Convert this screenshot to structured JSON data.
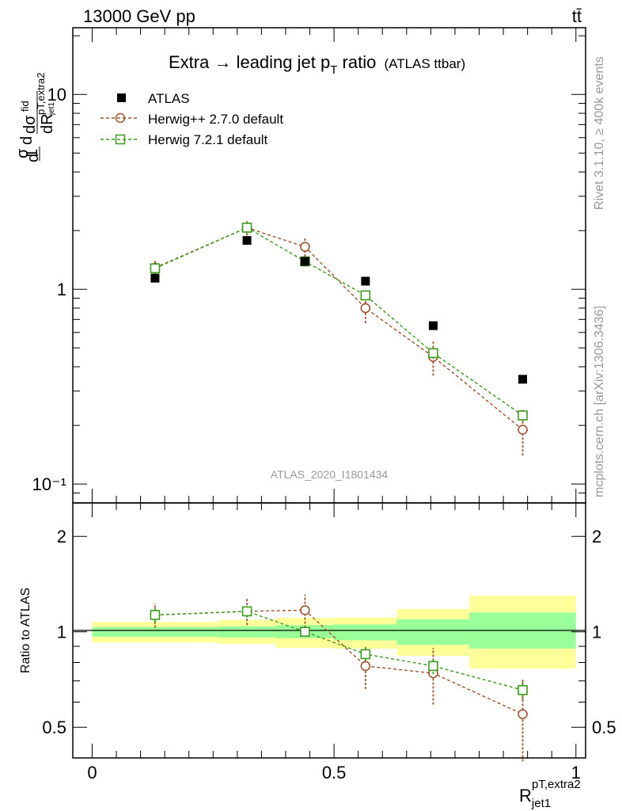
{
  "header": {
    "energy_label": "13000 GeV pp",
    "process_label": "tt̄"
  },
  "side_labels": {
    "rivet": "Rivet 3.1.10, ≥ 400k events",
    "mcplots": "mcplots.cern.ch [arXiv:1306.3436]"
  },
  "colors": {
    "atlas": "#000000",
    "herwig_pp": "#a0522d",
    "herwig7": "#3a9a1a",
    "band_inner": "#99ff99",
    "band_outer": "#ffff99",
    "watermark": "#999999"
  },
  "chart_data": [
    {
      "type": "scatter",
      "title_main": "Extra → leading jet p",
      "title_sub": "T",
      "title_tail": " ratio",
      "title_paren": "(ATLAS ttbar)",
      "ylabel": "dσ/dR / σ (fid)",
      "yscale": "log",
      "ylim": [
        0.08,
        22
      ],
      "xlim": [
        -0.04,
        1.02
      ],
      "yticks": [
        {
          "value": 0.1,
          "label": "10⁻¹"
        },
        {
          "value": 1,
          "label": "1"
        },
        {
          "value": 10,
          "label": "10"
        }
      ],
      "watermark": "ATLAS_2020_I1801434",
      "legend": [
        {
          "key": "atlas",
          "label": "ATLAS"
        },
        {
          "key": "herwig_pp",
          "label": "Herwig++ 2.7.0 default"
        },
        {
          "key": "herwig7",
          "label": "Herwig 7.2.1 default"
        }
      ],
      "atlas": {
        "x": [
          0.13,
          0.32,
          0.44,
          0.565,
          0.705,
          0.89
        ],
        "y": [
          1.14,
          1.78,
          1.39,
          1.1,
          0.65,
          0.345
        ]
      },
      "herwig_pp": {
        "x": [
          0.13,
          0.32,
          0.44,
          0.565,
          0.705,
          0.89
        ],
        "y": [
          1.29,
          2.07,
          1.65,
          0.8,
          0.45,
          0.19
        ],
        "err": [
          0.11,
          0.18,
          0.18,
          0.13,
          0.09,
          0.05
        ]
      },
      "herwig7": {
        "x": [
          0.13,
          0.32,
          0.44,
          0.565,
          0.705,
          0.89
        ],
        "y": [
          1.28,
          2.07,
          1.39,
          0.93,
          0.47,
          0.225
        ],
        "err": [
          0.07,
          0.09,
          0.05,
          0.04,
          0.03,
          0.015
        ]
      }
    },
    {
      "type": "scatter",
      "ylabel": "Ratio to ATLAS",
      "xlabel_main": "R",
      "xlabel_sub": "jet1",
      "xlabel_sup": "pT,extra2",
      "yscale": "log",
      "ylim": [
        0.4,
        2.55
      ],
      "xlim": [
        -0.04,
        1.02
      ],
      "yticks": [
        {
          "value": 0.5,
          "label": "0.5"
        },
        {
          "value": 1,
          "label": "1"
        },
        {
          "value": 2,
          "label": "2"
        }
      ],
      "xticks": [
        {
          "value": 0,
          "label": "0"
        },
        {
          "value": 0.5,
          "label": "0.5"
        },
        {
          "value": 1,
          "label": "1"
        }
      ],
      "bands": [
        {
          "x0": 0.0,
          "x1": 0.26,
          "inner": [
            0.965,
            1.035
          ],
          "outer": [
            0.925,
            1.075
          ]
        },
        {
          "x0": 0.26,
          "x1": 0.38,
          "inner": [
            0.96,
            1.04
          ],
          "outer": [
            0.915,
            1.09
          ]
        },
        {
          "x0": 0.38,
          "x1": 0.5,
          "inner": [
            0.955,
            1.05
          ],
          "outer": [
            0.89,
            1.105
          ]
        },
        {
          "x0": 0.5,
          "x1": 0.63,
          "inner": [
            0.94,
            1.055
          ],
          "outer": [
            0.885,
            1.11
          ]
        },
        {
          "x0": 0.63,
          "x1": 0.78,
          "inner": [
            0.91,
            1.095
          ],
          "outer": [
            0.84,
            1.18
          ]
        },
        {
          "x0": 0.78,
          "x1": 1.0,
          "inner": [
            0.885,
            1.15
          ],
          "outer": [
            0.765,
            1.3
          ]
        }
      ],
      "herwig_pp": {
        "x": [
          0.13,
          0.32,
          0.44,
          0.565,
          0.705,
          0.89
        ],
        "y": [
          1.13,
          1.16,
          1.17,
          0.78,
          0.74,
          0.55
        ],
        "err": [
          0.1,
          0.11,
          0.14,
          0.12,
          0.15,
          0.16
        ]
      },
      "herwig7": {
        "x": [
          0.13,
          0.32,
          0.44,
          0.565,
          0.705,
          0.89
        ],
        "y": [
          1.13,
          1.16,
          1.0,
          0.85,
          0.78,
          0.655
        ],
        "err": [
          0.06,
          0.05,
          0.035,
          0.04,
          0.045,
          0.045
        ]
      }
    }
  ]
}
